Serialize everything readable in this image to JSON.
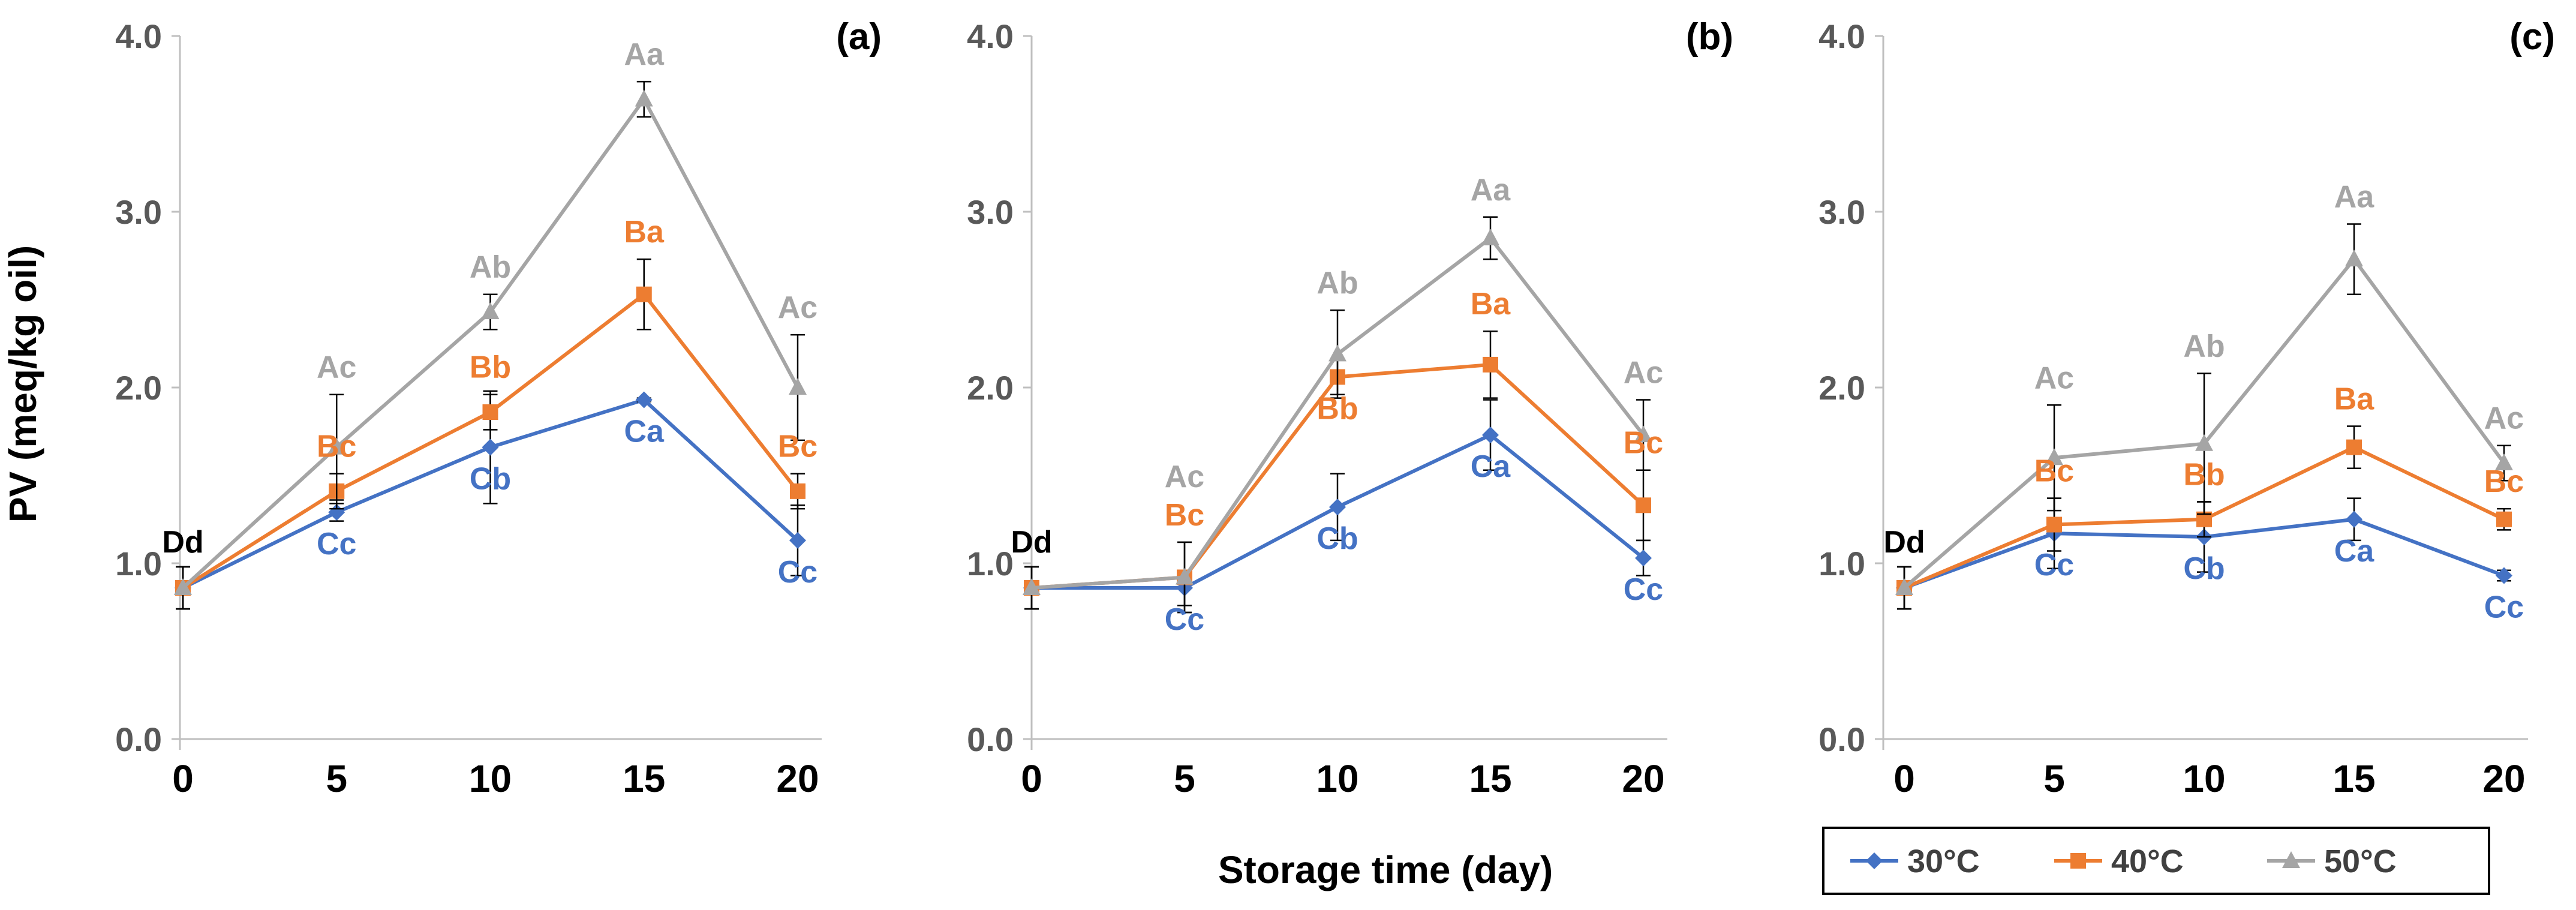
{
  "ylabel": "PV (meq/kg oil)",
  "xlabel": "Storage time (day)",
  "colors": {
    "30°C": "#4472C4",
    "40°C": "#ED7D31",
    "50°C": "#A5A5A5",
    "Dd": "#000000"
  },
  "legend": {
    "placement": "bottom-right",
    "entries": [
      {
        "label": "30°C",
        "marker": "diamond",
        "color": "#4472C4"
      },
      {
        "label": "40°C",
        "marker": "square",
        "color": "#ED7D31"
      },
      {
        "label": "50°C",
        "marker": "triangle",
        "color": "#A5A5A5"
      }
    ]
  },
  "chart_data": [
    {
      "panel": "(a)",
      "type": "line",
      "x": [
        0,
        5,
        10,
        15,
        20
      ],
      "ylim": [
        0,
        4
      ],
      "yticks": [
        "0.0",
        "1.0",
        "2.0",
        "3.0",
        "4.0"
      ],
      "xticks": [
        "0",
        "5",
        "10",
        "15",
        "20"
      ],
      "grid": false,
      "series": [
        {
          "name": "30°C",
          "values": [
            0.86,
            1.29,
            1.66,
            1.93,
            1.13
          ],
          "errors": [
            0.12,
            0.05,
            0.32,
            0.01,
            0.2
          ],
          "labels": [
            "Dd",
            "Cc",
            "Cb",
            "Ca",
            "Cc"
          ]
        },
        {
          "name": "40°C",
          "values": [
            0.86,
            1.41,
            1.86,
            2.53,
            1.41
          ],
          "errors": [
            0.12,
            0.1,
            0.1,
            0.2,
            0.1
          ],
          "labels": [
            "",
            "Bc",
            "Bb",
            "Ba",
            "Bc"
          ]
        },
        {
          "name": "50°C",
          "values": [
            0.86,
            1.66,
            2.43,
            3.64,
            2.0
          ],
          "errors": [
            0.12,
            0.3,
            0.1,
            0.1,
            0.3
          ],
          "labels": [
            "",
            "Ac",
            "Ab",
            "Aa",
            "Ac"
          ]
        }
      ]
    },
    {
      "panel": "(b)",
      "type": "line",
      "x": [
        0,
        5,
        10,
        15,
        20
      ],
      "ylim": [
        0,
        4
      ],
      "yticks": [
        "0.0",
        "1.0",
        "2.0",
        "3.0",
        "4.0"
      ],
      "xticks": [
        "0",
        "5",
        "10",
        "15",
        "20"
      ],
      "grid": false,
      "series": [
        {
          "name": "30°C",
          "values": [
            0.86,
            0.86,
            1.32,
            1.73,
            1.03
          ],
          "errors": [
            0.12,
            0.1,
            0.19,
            0.2,
            0.1
          ],
          "labels": [
            "Dd",
            "Cc",
            "Cb",
            "Ca",
            "Cc"
          ]
        },
        {
          "name": "40°C",
          "values": [
            0.86,
            0.92,
            2.06,
            2.13,
            1.33
          ],
          "errors": [
            0.12,
            0.2,
            0.1,
            0.19,
            0.2
          ],
          "labels": [
            "",
            "Bc",
            "Bb",
            "Ba",
            "Bc"
          ]
        },
        {
          "name": "50°C",
          "values": [
            0.86,
            0.92,
            2.19,
            2.85,
            1.73
          ],
          "errors": [
            0.12,
            0.2,
            0.25,
            0.12,
            0.2
          ],
          "labels": [
            "",
            "Ac",
            "Ab",
            "Aa",
            "Ac"
          ]
        }
      ]
    },
    {
      "panel": "(c)",
      "type": "line",
      "x": [
        0,
        5,
        10,
        15,
        20
      ],
      "ylim": [
        0,
        4
      ],
      "yticks": [
        "0.0",
        "1.0",
        "2.0",
        "3.0",
        "4.0"
      ],
      "xticks": [
        "0",
        "5",
        "10",
        "15",
        "20"
      ],
      "grid": false,
      "series": [
        {
          "name": "30°C",
          "values": [
            0.86,
            1.17,
            1.15,
            1.25,
            0.93
          ],
          "errors": [
            0.12,
            0.2,
            0.2,
            0.12,
            0.03
          ],
          "labels": [
            "Dd",
            "Cc",
            "Cb",
            "Ca",
            "Cc"
          ]
        },
        {
          "name": "40°C",
          "values": [
            0.86,
            1.22,
            1.25,
            1.66,
            1.25
          ],
          "errors": [
            0.12,
            0.15,
            0.1,
            0.12,
            0.06
          ],
          "labels": [
            "",
            "Bc",
            "Bb",
            "Ba",
            "Bc"
          ]
        },
        {
          "name": "50°C",
          "values": [
            0.86,
            1.6,
            1.68,
            2.73,
            1.57
          ],
          "errors": [
            0.12,
            0.3,
            0.4,
            0.2,
            0.1
          ],
          "labels": [
            "",
            "Ac",
            "Ab",
            "Aa",
            "Ac"
          ]
        }
      ]
    }
  ]
}
